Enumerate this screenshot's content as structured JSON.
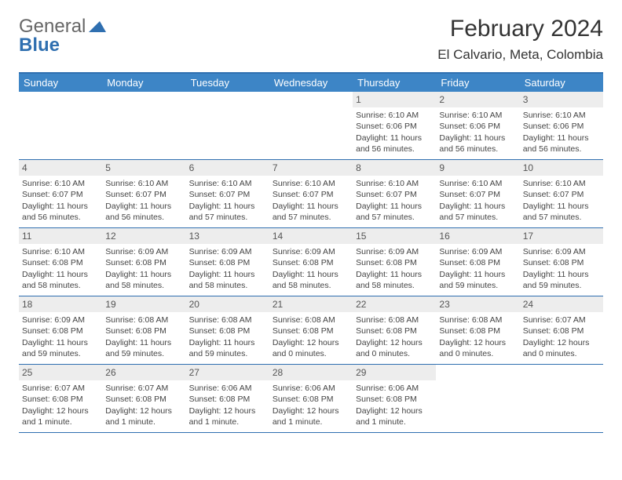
{
  "logo": {
    "general": "General",
    "blue": "Blue"
  },
  "title": "February 2024",
  "location": "El Calvario, Meta, Colombia",
  "colors": {
    "header_bar": "#3d85c6",
    "header_border_top": "#2f6fb0",
    "row_border": "#2f6fb0",
    "daynum_bg": "#ededed",
    "logo_blue": "#2f6fb0",
    "logo_gray": "#666666",
    "text": "#333333",
    "background": "#ffffff"
  },
  "weekdays": [
    "Sunday",
    "Monday",
    "Tuesday",
    "Wednesday",
    "Thursday",
    "Friday",
    "Saturday"
  ],
  "weeks": [
    [
      {
        "n": "",
        "sunrise": "",
        "sunset": "",
        "daylight": ""
      },
      {
        "n": "",
        "sunrise": "",
        "sunset": "",
        "daylight": ""
      },
      {
        "n": "",
        "sunrise": "",
        "sunset": "",
        "daylight": ""
      },
      {
        "n": "",
        "sunrise": "",
        "sunset": "",
        "daylight": ""
      },
      {
        "n": "1",
        "sunrise": "Sunrise: 6:10 AM",
        "sunset": "Sunset: 6:06 PM",
        "daylight": "Daylight: 11 hours and 56 minutes."
      },
      {
        "n": "2",
        "sunrise": "Sunrise: 6:10 AM",
        "sunset": "Sunset: 6:06 PM",
        "daylight": "Daylight: 11 hours and 56 minutes."
      },
      {
        "n": "3",
        "sunrise": "Sunrise: 6:10 AM",
        "sunset": "Sunset: 6:06 PM",
        "daylight": "Daylight: 11 hours and 56 minutes."
      }
    ],
    [
      {
        "n": "4",
        "sunrise": "Sunrise: 6:10 AM",
        "sunset": "Sunset: 6:07 PM",
        "daylight": "Daylight: 11 hours and 56 minutes."
      },
      {
        "n": "5",
        "sunrise": "Sunrise: 6:10 AM",
        "sunset": "Sunset: 6:07 PM",
        "daylight": "Daylight: 11 hours and 56 minutes."
      },
      {
        "n": "6",
        "sunrise": "Sunrise: 6:10 AM",
        "sunset": "Sunset: 6:07 PM",
        "daylight": "Daylight: 11 hours and 57 minutes."
      },
      {
        "n": "7",
        "sunrise": "Sunrise: 6:10 AM",
        "sunset": "Sunset: 6:07 PM",
        "daylight": "Daylight: 11 hours and 57 minutes."
      },
      {
        "n": "8",
        "sunrise": "Sunrise: 6:10 AM",
        "sunset": "Sunset: 6:07 PM",
        "daylight": "Daylight: 11 hours and 57 minutes."
      },
      {
        "n": "9",
        "sunrise": "Sunrise: 6:10 AM",
        "sunset": "Sunset: 6:07 PM",
        "daylight": "Daylight: 11 hours and 57 minutes."
      },
      {
        "n": "10",
        "sunrise": "Sunrise: 6:10 AM",
        "sunset": "Sunset: 6:07 PM",
        "daylight": "Daylight: 11 hours and 57 minutes."
      }
    ],
    [
      {
        "n": "11",
        "sunrise": "Sunrise: 6:10 AM",
        "sunset": "Sunset: 6:08 PM",
        "daylight": "Daylight: 11 hours and 58 minutes."
      },
      {
        "n": "12",
        "sunrise": "Sunrise: 6:09 AM",
        "sunset": "Sunset: 6:08 PM",
        "daylight": "Daylight: 11 hours and 58 minutes."
      },
      {
        "n": "13",
        "sunrise": "Sunrise: 6:09 AM",
        "sunset": "Sunset: 6:08 PM",
        "daylight": "Daylight: 11 hours and 58 minutes."
      },
      {
        "n": "14",
        "sunrise": "Sunrise: 6:09 AM",
        "sunset": "Sunset: 6:08 PM",
        "daylight": "Daylight: 11 hours and 58 minutes."
      },
      {
        "n": "15",
        "sunrise": "Sunrise: 6:09 AM",
        "sunset": "Sunset: 6:08 PM",
        "daylight": "Daylight: 11 hours and 58 minutes."
      },
      {
        "n": "16",
        "sunrise": "Sunrise: 6:09 AM",
        "sunset": "Sunset: 6:08 PM",
        "daylight": "Daylight: 11 hours and 59 minutes."
      },
      {
        "n": "17",
        "sunrise": "Sunrise: 6:09 AM",
        "sunset": "Sunset: 6:08 PM",
        "daylight": "Daylight: 11 hours and 59 minutes."
      }
    ],
    [
      {
        "n": "18",
        "sunrise": "Sunrise: 6:09 AM",
        "sunset": "Sunset: 6:08 PM",
        "daylight": "Daylight: 11 hours and 59 minutes."
      },
      {
        "n": "19",
        "sunrise": "Sunrise: 6:08 AM",
        "sunset": "Sunset: 6:08 PM",
        "daylight": "Daylight: 11 hours and 59 minutes."
      },
      {
        "n": "20",
        "sunrise": "Sunrise: 6:08 AM",
        "sunset": "Sunset: 6:08 PM",
        "daylight": "Daylight: 11 hours and 59 minutes."
      },
      {
        "n": "21",
        "sunrise": "Sunrise: 6:08 AM",
        "sunset": "Sunset: 6:08 PM",
        "daylight": "Daylight: 12 hours and 0 minutes."
      },
      {
        "n": "22",
        "sunrise": "Sunrise: 6:08 AM",
        "sunset": "Sunset: 6:08 PM",
        "daylight": "Daylight: 12 hours and 0 minutes."
      },
      {
        "n": "23",
        "sunrise": "Sunrise: 6:08 AM",
        "sunset": "Sunset: 6:08 PM",
        "daylight": "Daylight: 12 hours and 0 minutes."
      },
      {
        "n": "24",
        "sunrise": "Sunrise: 6:07 AM",
        "sunset": "Sunset: 6:08 PM",
        "daylight": "Daylight: 12 hours and 0 minutes."
      }
    ],
    [
      {
        "n": "25",
        "sunrise": "Sunrise: 6:07 AM",
        "sunset": "Sunset: 6:08 PM",
        "daylight": "Daylight: 12 hours and 1 minute."
      },
      {
        "n": "26",
        "sunrise": "Sunrise: 6:07 AM",
        "sunset": "Sunset: 6:08 PM",
        "daylight": "Daylight: 12 hours and 1 minute."
      },
      {
        "n": "27",
        "sunrise": "Sunrise: 6:06 AM",
        "sunset": "Sunset: 6:08 PM",
        "daylight": "Daylight: 12 hours and 1 minute."
      },
      {
        "n": "28",
        "sunrise": "Sunrise: 6:06 AM",
        "sunset": "Sunset: 6:08 PM",
        "daylight": "Daylight: 12 hours and 1 minute."
      },
      {
        "n": "29",
        "sunrise": "Sunrise: 6:06 AM",
        "sunset": "Sunset: 6:08 PM",
        "daylight": "Daylight: 12 hours and 1 minute."
      },
      {
        "n": "",
        "sunrise": "",
        "sunset": "",
        "daylight": ""
      },
      {
        "n": "",
        "sunrise": "",
        "sunset": "",
        "daylight": ""
      }
    ]
  ]
}
